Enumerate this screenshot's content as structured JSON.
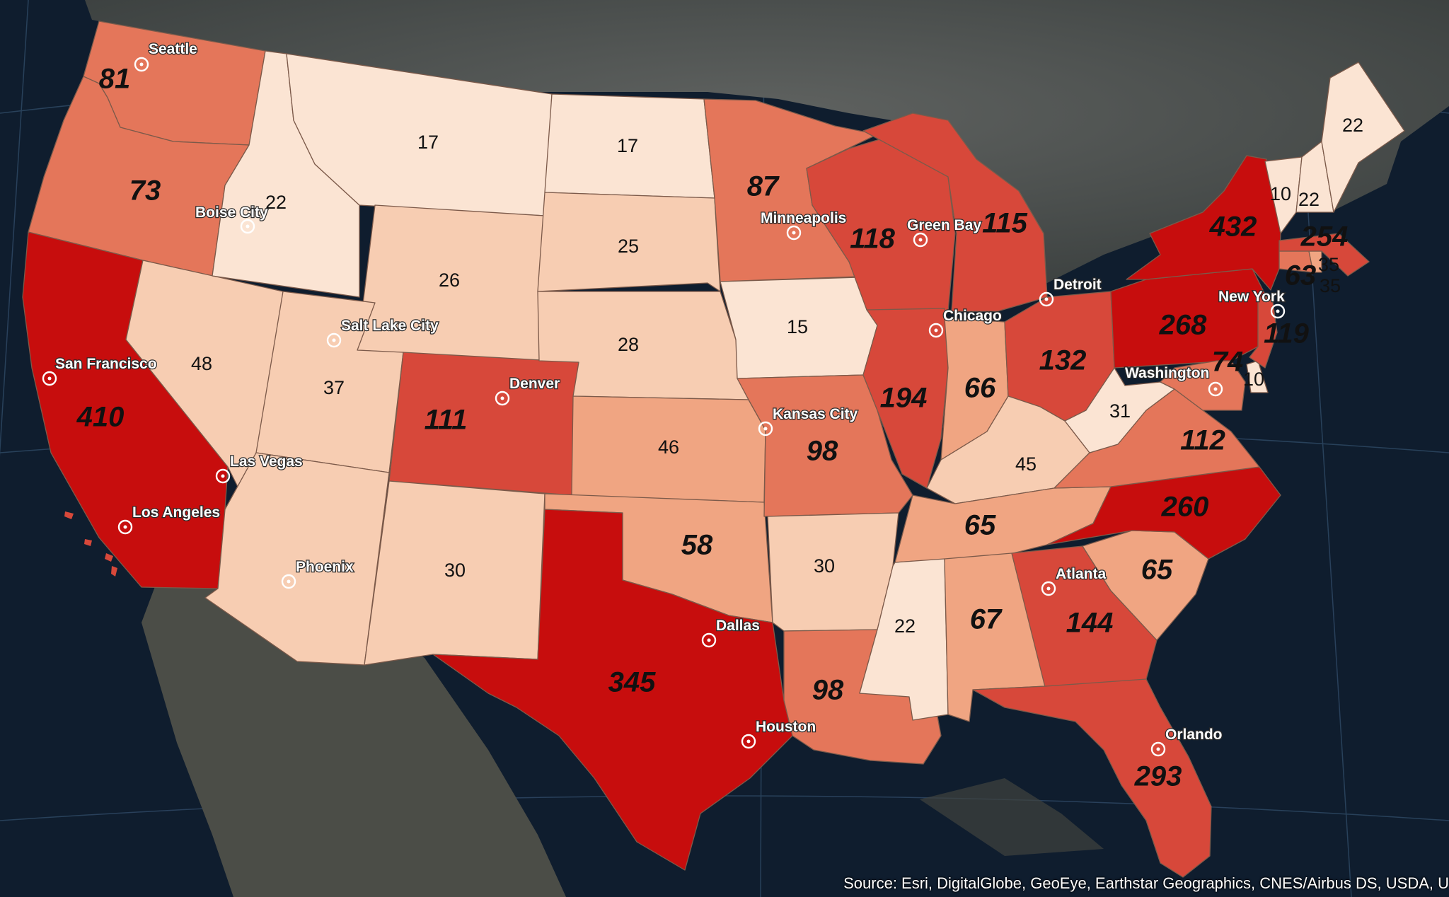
{
  "attribution": "Source: Esri, DigitalGlobe, GeoEye, Earthstar Geographics, CNES/Airbus DS, USDA, U",
  "colors": {
    "level_1": "#fbe4d3",
    "level_2": "#f7cdb2",
    "level_3": "#f0a582",
    "level_4": "#e4765a",
    "level_5": "#d7483a",
    "level_6": "#c70d0d",
    "state_border": "#7c5a4a",
    "city_label": "#ffffff"
  },
  "states": [
    {
      "id": "WA",
      "value": "81"
    },
    {
      "id": "OR",
      "value": "73"
    },
    {
      "id": "CA",
      "value": "410"
    },
    {
      "id": "ID",
      "value": "22"
    },
    {
      "id": "NV",
      "value": "48"
    },
    {
      "id": "UT",
      "value": "37"
    },
    {
      "id": "AZ",
      "value": "Phoenix"
    },
    {
      "id": "MT",
      "value": "17"
    },
    {
      "id": "WY",
      "value": "26"
    },
    {
      "id": "CO",
      "value": "111"
    },
    {
      "id": "NM",
      "value": "30"
    },
    {
      "id": "ND",
      "value": "17"
    },
    {
      "id": "SD",
      "value": "25"
    },
    {
      "id": "NE",
      "value": "28"
    },
    {
      "id": "KS",
      "value": "46"
    },
    {
      "id": "OK",
      "value": "58"
    },
    {
      "id": "TX",
      "value": "345"
    },
    {
      "id": "MN",
      "value": "87"
    },
    {
      "id": "IA",
      "value": "15"
    },
    {
      "id": "MO",
      "value": "98"
    },
    {
      "id": "AR",
      "value": "30"
    },
    {
      "id": "LA",
      "value": "98"
    },
    {
      "id": "WI",
      "value": "118"
    },
    {
      "id": "MI",
      "value": "115"
    },
    {
      "id": "IL",
      "value": "194"
    },
    {
      "id": "IN",
      "value": "66"
    },
    {
      "id": "OH",
      "value": "132"
    },
    {
      "id": "KY",
      "value": "45"
    },
    {
      "id": "TN",
      "value": "65"
    },
    {
      "id": "MS",
      "value": "22"
    },
    {
      "id": "AL",
      "value": "67"
    },
    {
      "id": "GA",
      "value": "144"
    },
    {
      "id": "FL",
      "value": "293"
    },
    {
      "id": "SC",
      "value": "65"
    },
    {
      "id": "NC",
      "value": "260"
    },
    {
      "id": "VA",
      "value": "112"
    },
    {
      "id": "WV",
      "value": "31"
    },
    {
      "id": "PA",
      "value": "268"
    },
    {
      "id": "NY",
      "value": "432"
    },
    {
      "id": "MD",
      "value": "74"
    },
    {
      "id": "DE",
      "value": "10"
    },
    {
      "id": "NJ",
      "value": "119"
    },
    {
      "id": "CT",
      "value": "63"
    },
    {
      "id": "RI",
      "value": "35"
    },
    {
      "id": "MA",
      "value": "254"
    },
    {
      "id": "VT",
      "value": "10"
    },
    {
      "id": "NH",
      "value": "22"
    },
    {
      "id": "ME",
      "value": "22"
    },
    {
      "id": "RI2",
      "value": "35"
    }
  ],
  "cities": [
    {
      "name": "Seattle"
    },
    {
      "name": "Boise City"
    },
    {
      "name": "San Francisco"
    },
    {
      "name": "Los Angeles"
    },
    {
      "name": "Las Vegas"
    },
    {
      "name": "Salt Lake City"
    },
    {
      "name": "Phoenix"
    },
    {
      "name": "Denver"
    },
    {
      "name": "Dallas"
    },
    {
      "name": "Houston"
    },
    {
      "name": "Minneapolis"
    },
    {
      "name": "Kansas City"
    },
    {
      "name": "Chicago"
    },
    {
      "name": "Green Bay"
    },
    {
      "name": "Detroit"
    },
    {
      "name": "Atlanta"
    },
    {
      "name": "Orlando"
    },
    {
      "name": "Washington"
    },
    {
      "name": "New York"
    }
  ]
}
